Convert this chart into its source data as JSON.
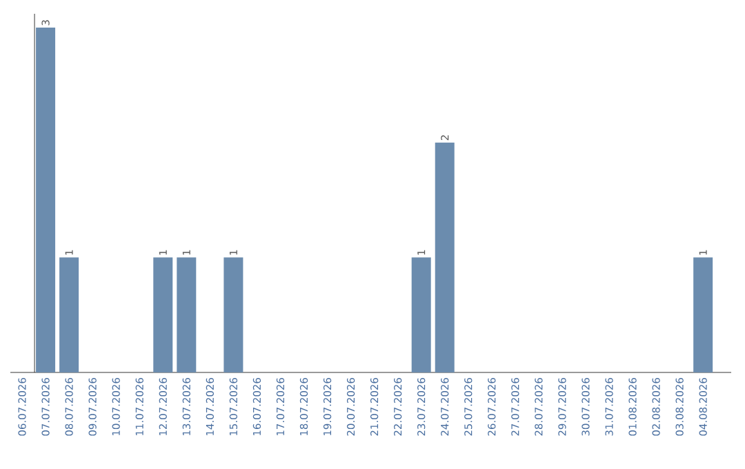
{
  "chart_data": {
    "type": "bar",
    "categories": [
      "06.07.2026",
      "07.07.2026",
      "08.07.2026",
      "09.07.2026",
      "10.07.2026",
      "11.07.2026",
      "12.07.2026",
      "13.07.2026",
      "14.07.2026",
      "15.07.2026",
      "16.07.2026",
      "17.07.2026",
      "18.07.2026",
      "19.07.2026",
      "20.07.2026",
      "21.07.2026",
      "22.07.2026",
      "23.07.2026",
      "24.07.2026",
      "25.07.2026",
      "26.07.2026",
      "27.07.2026",
      "28.07.2026",
      "29.07.2026",
      "30.07.2026",
      "31.07.2026",
      "01.08.2026",
      "02.08.2026",
      "03.08.2026",
      "04.08.2026"
    ],
    "values": [
      0,
      3,
      1,
      0,
      0,
      0,
      1,
      1,
      0,
      1,
      0,
      0,
      0,
      0,
      0,
      0,
      0,
      1,
      2,
      0,
      0,
      0,
      0,
      0,
      0,
      0,
      0,
      0,
      0,
      1
    ],
    "value_labels": [
      null,
      "3",
      "1",
      null,
      null,
      null,
      "1",
      "1",
      null,
      "1",
      null,
      null,
      null,
      null,
      null,
      null,
      null,
      "1",
      "2",
      null,
      null,
      null,
      null,
      null,
      null,
      null,
      null,
      null,
      null,
      "1"
    ],
    "color": "#6b8cae"
  }
}
